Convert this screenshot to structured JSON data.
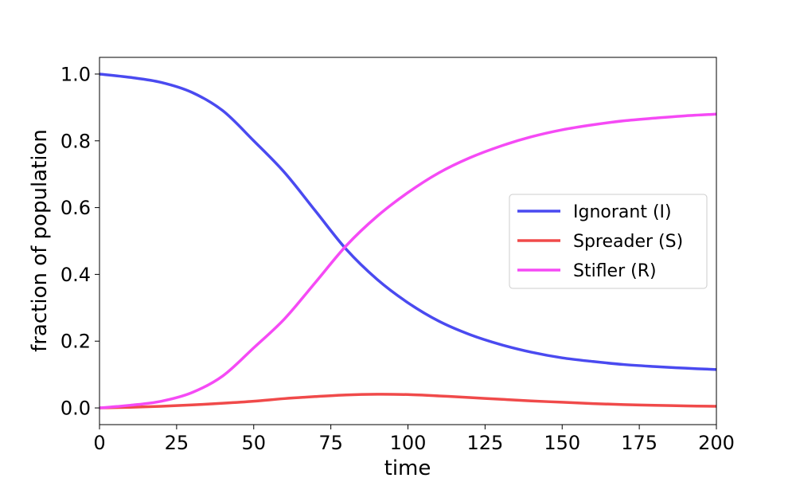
{
  "chart_data": {
    "type": "line",
    "title": "",
    "xlabel": "time",
    "ylabel": "fraction of population",
    "xlim": [
      0,
      200
    ],
    "ylim": [
      -0.05,
      1.05
    ],
    "xticks": [
      0,
      25,
      50,
      75,
      100,
      125,
      150,
      175,
      200
    ],
    "xtick_labels": [
      "0",
      "25",
      "50",
      "75",
      "100",
      "125",
      "150",
      "175",
      "200"
    ],
    "yticks": [
      0.0,
      0.2,
      0.4,
      0.6,
      0.8,
      1.0
    ],
    "ytick_labels": [
      "0.0",
      "0.2",
      "0.4",
      "0.6",
      "0.8",
      "1.0"
    ],
    "grid": false,
    "legend_position": "center-right",
    "x": [
      0,
      10,
      20,
      30,
      40,
      50,
      60,
      70,
      80,
      90,
      100,
      110,
      120,
      130,
      140,
      150,
      160,
      170,
      180,
      190,
      200
    ],
    "series": [
      {
        "name": "Ignorant (I)",
        "color": "#4a4af0",
        "values": [
          1.0,
          0.99,
          0.975,
          0.945,
          0.89,
          0.8,
          0.705,
          0.59,
          0.475,
          0.385,
          0.315,
          0.26,
          0.22,
          0.19,
          0.167,
          0.15,
          0.139,
          0.13,
          0.124,
          0.119,
          0.115
        ]
      },
      {
        "name": "Spreader (S)",
        "color": "#f04a4a",
        "values": [
          0.0,
          0.002,
          0.005,
          0.009,
          0.014,
          0.02,
          0.028,
          0.034,
          0.039,
          0.041,
          0.04,
          0.036,
          0.031,
          0.026,
          0.021,
          0.017,
          0.013,
          0.01,
          0.008,
          0.006,
          0.005
        ]
      },
      {
        "name": "Stifler (R)",
        "color": "#f54af5",
        "values": [
          0.0,
          0.008,
          0.02,
          0.046,
          0.096,
          0.18,
          0.267,
          0.376,
          0.486,
          0.574,
          0.645,
          0.704,
          0.749,
          0.784,
          0.812,
          0.833,
          0.848,
          0.86,
          0.868,
          0.875,
          0.88
        ]
      }
    ]
  }
}
